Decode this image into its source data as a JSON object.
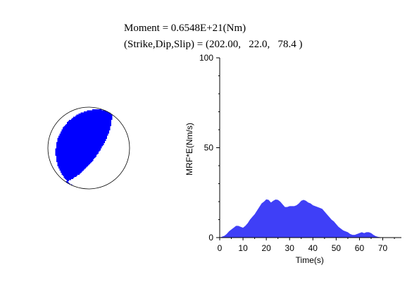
{
  "header": {
    "moment_line": "Moment = 0.6548E+21(Nm)",
    "mechanism_line": "(Strike,Dip,Slip) = (202.00,   22.0,   78.4 )"
  },
  "focal_mechanism": {
    "strike": 202.0,
    "dip": 22.0,
    "slip": 78.4,
    "compression_color": "#0000ff",
    "dilatation_color": "#ffffff",
    "outline_color": "#000000"
  },
  "chart_data": {
    "type": "area",
    "xlabel": "Time(s)",
    "ylabel": "MRF*E(Nm/s)",
    "xlim": [
      0,
      78
    ],
    "ylim": [
      0,
      100
    ],
    "xticks": [
      0,
      10,
      20,
      30,
      40,
      50,
      60,
      70
    ],
    "yticks": [
      0,
      50,
      100
    ],
    "grid": false,
    "fill_color": "#3f3ff7",
    "x": [
      0,
      1,
      2,
      3,
      4,
      5,
      6,
      7,
      8,
      9,
      10,
      11,
      12,
      13,
      14,
      15,
      16,
      17,
      18,
      19,
      20,
      21,
      22,
      23,
      24,
      25,
      26,
      27,
      28,
      29,
      30,
      31,
      32,
      33,
      34,
      35,
      36,
      37,
      38,
      39,
      40,
      41,
      42,
      43,
      44,
      45,
      46,
      47,
      48,
      49,
      50,
      51,
      52,
      53,
      54,
      55,
      56,
      57,
      58,
      59,
      60,
      61,
      62,
      63,
      64,
      65,
      66,
      67,
      68,
      69,
      70
    ],
    "y": [
      0,
      0.5,
      1,
      2,
      3.5,
      4.5,
      5.5,
      6.5,
      6.5,
      6,
      5.5,
      6.5,
      8,
      10,
      11.5,
      13,
      15,
      17,
      19,
      20,
      21.3,
      21,
      19.5,
      20.5,
      21.2,
      21,
      20,
      18.5,
      17,
      17,
      17.5,
      17.5,
      17.5,
      18,
      19,
      20.5,
      21,
      20.5,
      19.5,
      19,
      18,
      17.5,
      17,
      16.5,
      16,
      14.5,
      13,
      11.5,
      10,
      9,
      7.5,
      6,
      5,
      4,
      3.5,
      3,
      2,
      1.5,
      1.5,
      2,
      2.5,
      3,
      2.5,
      3,
      3,
      2.5,
      1.5,
      0.8,
      0.4,
      0.2,
      0
    ]
  }
}
